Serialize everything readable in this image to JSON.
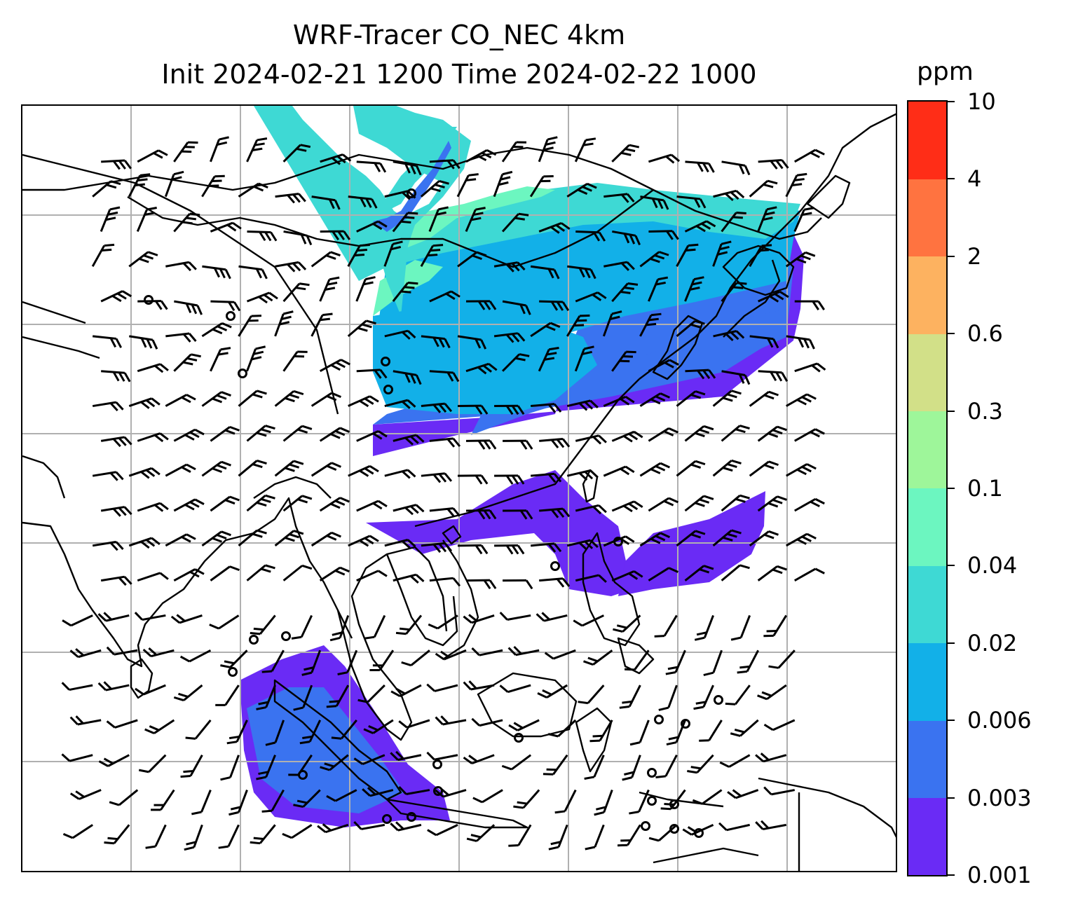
{
  "title": {
    "line1": "WRF-Tracer CO_NEC 4km",
    "line2": "Init 2024-02-21 1200 Time 2024-02-22 1000"
  },
  "colorbar": {
    "unit": "ppm",
    "levels": [
      "0.001",
      "0.003",
      "0.006",
      "0.02",
      "0.04",
      "0.1",
      "0.3",
      "0.6",
      "2",
      "4",
      "10"
    ],
    "colors": [
      "#6a2bf5",
      "#3a73f0",
      "#12b0e8",
      "#3ed9d4",
      "#6cf6c0",
      "#9ef69a",
      "#d2e088",
      "#fdb260",
      "#ff7340",
      "#ff2d17"
    ]
  },
  "map": {
    "gridlines": "on",
    "gridline_color": "#b0b0b0",
    "coastline_color": "#000000",
    "wind_symbol": "wind barbs",
    "calm_symbol": "circle"
  }
}
